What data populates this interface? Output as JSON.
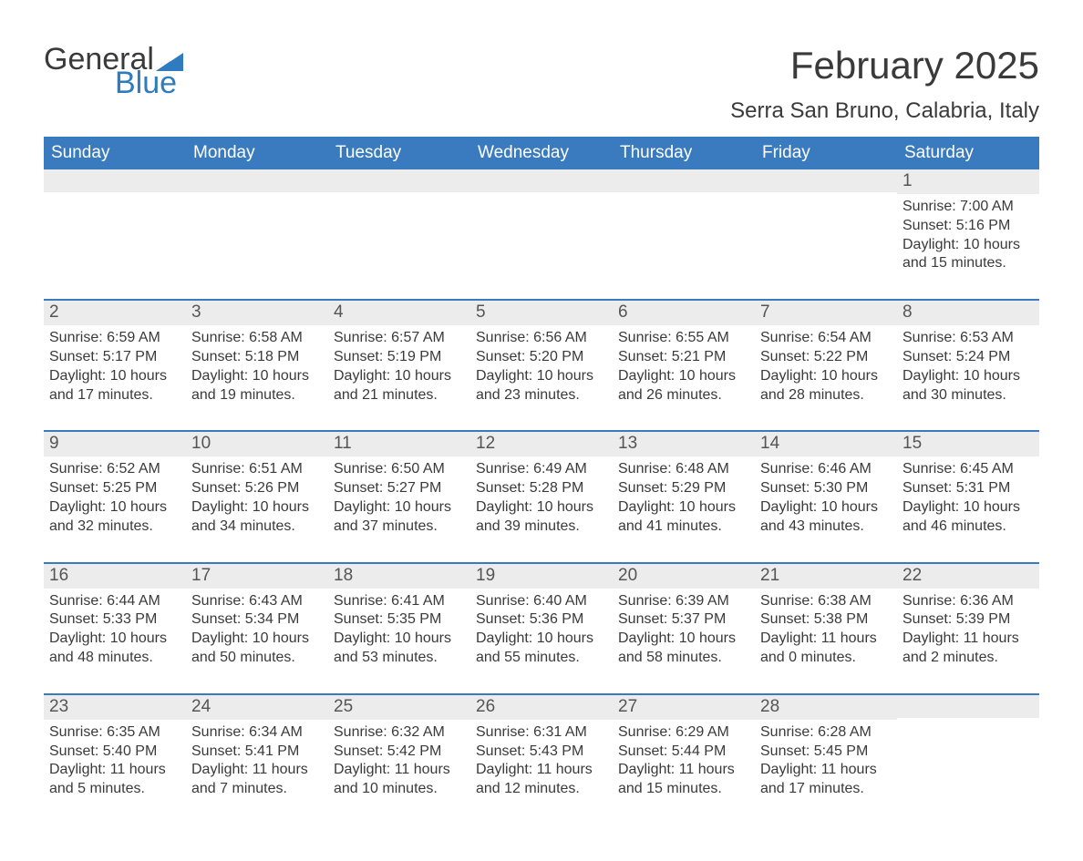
{
  "logo": {
    "text1": "General",
    "text2": "Blue",
    "tri_color": "#2f7bbf"
  },
  "header": {
    "month_title": "February 2025",
    "location": "Serra San Bruno, Calabria, Italy"
  },
  "colors": {
    "header_bg": "#3a7bbf",
    "header_text": "#ffffff",
    "daynum_bg": "#ececec",
    "border": "#3a7bbf",
    "text": "#3a3a3a"
  },
  "day_labels": [
    "Sunday",
    "Monday",
    "Tuesday",
    "Wednesday",
    "Thursday",
    "Friday",
    "Saturday"
  ],
  "weeks": [
    [
      {
        "n": "",
        "sr": "",
        "ss": "",
        "dl1": "",
        "dl2": ""
      },
      {
        "n": "",
        "sr": "",
        "ss": "",
        "dl1": "",
        "dl2": ""
      },
      {
        "n": "",
        "sr": "",
        "ss": "",
        "dl1": "",
        "dl2": ""
      },
      {
        "n": "",
        "sr": "",
        "ss": "",
        "dl1": "",
        "dl2": ""
      },
      {
        "n": "",
        "sr": "",
        "ss": "",
        "dl1": "",
        "dl2": ""
      },
      {
        "n": "",
        "sr": "",
        "ss": "",
        "dl1": "",
        "dl2": ""
      },
      {
        "n": "1",
        "sr": "Sunrise: 7:00 AM",
        "ss": "Sunset: 5:16 PM",
        "dl1": "Daylight: 10 hours",
        "dl2": "and 15 minutes."
      }
    ],
    [
      {
        "n": "2",
        "sr": "Sunrise: 6:59 AM",
        "ss": "Sunset: 5:17 PM",
        "dl1": "Daylight: 10 hours",
        "dl2": "and 17 minutes."
      },
      {
        "n": "3",
        "sr": "Sunrise: 6:58 AM",
        "ss": "Sunset: 5:18 PM",
        "dl1": "Daylight: 10 hours",
        "dl2": "and 19 minutes."
      },
      {
        "n": "4",
        "sr": "Sunrise: 6:57 AM",
        "ss": "Sunset: 5:19 PM",
        "dl1": "Daylight: 10 hours",
        "dl2": "and 21 minutes."
      },
      {
        "n": "5",
        "sr": "Sunrise: 6:56 AM",
        "ss": "Sunset: 5:20 PM",
        "dl1": "Daylight: 10 hours",
        "dl2": "and 23 minutes."
      },
      {
        "n": "6",
        "sr": "Sunrise: 6:55 AM",
        "ss": "Sunset: 5:21 PM",
        "dl1": "Daylight: 10 hours",
        "dl2": "and 26 minutes."
      },
      {
        "n": "7",
        "sr": "Sunrise: 6:54 AM",
        "ss": "Sunset: 5:22 PM",
        "dl1": "Daylight: 10 hours",
        "dl2": "and 28 minutes."
      },
      {
        "n": "8",
        "sr": "Sunrise: 6:53 AM",
        "ss": "Sunset: 5:24 PM",
        "dl1": "Daylight: 10 hours",
        "dl2": "and 30 minutes."
      }
    ],
    [
      {
        "n": "9",
        "sr": "Sunrise: 6:52 AM",
        "ss": "Sunset: 5:25 PM",
        "dl1": "Daylight: 10 hours",
        "dl2": "and 32 minutes."
      },
      {
        "n": "10",
        "sr": "Sunrise: 6:51 AM",
        "ss": "Sunset: 5:26 PM",
        "dl1": "Daylight: 10 hours",
        "dl2": "and 34 minutes."
      },
      {
        "n": "11",
        "sr": "Sunrise: 6:50 AM",
        "ss": "Sunset: 5:27 PM",
        "dl1": "Daylight: 10 hours",
        "dl2": "and 37 minutes."
      },
      {
        "n": "12",
        "sr": "Sunrise: 6:49 AM",
        "ss": "Sunset: 5:28 PM",
        "dl1": "Daylight: 10 hours",
        "dl2": "and 39 minutes."
      },
      {
        "n": "13",
        "sr": "Sunrise: 6:48 AM",
        "ss": "Sunset: 5:29 PM",
        "dl1": "Daylight: 10 hours",
        "dl2": "and 41 minutes."
      },
      {
        "n": "14",
        "sr": "Sunrise: 6:46 AM",
        "ss": "Sunset: 5:30 PM",
        "dl1": "Daylight: 10 hours",
        "dl2": "and 43 minutes."
      },
      {
        "n": "15",
        "sr": "Sunrise: 6:45 AM",
        "ss": "Sunset: 5:31 PM",
        "dl1": "Daylight: 10 hours",
        "dl2": "and 46 minutes."
      }
    ],
    [
      {
        "n": "16",
        "sr": "Sunrise: 6:44 AM",
        "ss": "Sunset: 5:33 PM",
        "dl1": "Daylight: 10 hours",
        "dl2": "and 48 minutes."
      },
      {
        "n": "17",
        "sr": "Sunrise: 6:43 AM",
        "ss": "Sunset: 5:34 PM",
        "dl1": "Daylight: 10 hours",
        "dl2": "and 50 minutes."
      },
      {
        "n": "18",
        "sr": "Sunrise: 6:41 AM",
        "ss": "Sunset: 5:35 PM",
        "dl1": "Daylight: 10 hours",
        "dl2": "and 53 minutes."
      },
      {
        "n": "19",
        "sr": "Sunrise: 6:40 AM",
        "ss": "Sunset: 5:36 PM",
        "dl1": "Daylight: 10 hours",
        "dl2": "and 55 minutes."
      },
      {
        "n": "20",
        "sr": "Sunrise: 6:39 AM",
        "ss": "Sunset: 5:37 PM",
        "dl1": "Daylight: 10 hours",
        "dl2": "and 58 minutes."
      },
      {
        "n": "21",
        "sr": "Sunrise: 6:38 AM",
        "ss": "Sunset: 5:38 PM",
        "dl1": "Daylight: 11 hours",
        "dl2": "and 0 minutes."
      },
      {
        "n": "22",
        "sr": "Sunrise: 6:36 AM",
        "ss": "Sunset: 5:39 PM",
        "dl1": "Daylight: 11 hours",
        "dl2": "and 2 minutes."
      }
    ],
    [
      {
        "n": "23",
        "sr": "Sunrise: 6:35 AM",
        "ss": "Sunset: 5:40 PM",
        "dl1": "Daylight: 11 hours",
        "dl2": "and 5 minutes."
      },
      {
        "n": "24",
        "sr": "Sunrise: 6:34 AM",
        "ss": "Sunset: 5:41 PM",
        "dl1": "Daylight: 11 hours",
        "dl2": "and 7 minutes."
      },
      {
        "n": "25",
        "sr": "Sunrise: 6:32 AM",
        "ss": "Sunset: 5:42 PM",
        "dl1": "Daylight: 11 hours",
        "dl2": "and 10 minutes."
      },
      {
        "n": "26",
        "sr": "Sunrise: 6:31 AM",
        "ss": "Sunset: 5:43 PM",
        "dl1": "Daylight: 11 hours",
        "dl2": "and 12 minutes."
      },
      {
        "n": "27",
        "sr": "Sunrise: 6:29 AM",
        "ss": "Sunset: 5:44 PM",
        "dl1": "Daylight: 11 hours",
        "dl2": "and 15 minutes."
      },
      {
        "n": "28",
        "sr": "Sunrise: 6:28 AM",
        "ss": "Sunset: 5:45 PM",
        "dl1": "Daylight: 11 hours",
        "dl2": "and 17 minutes."
      },
      {
        "n": "",
        "sr": "",
        "ss": "",
        "dl1": "",
        "dl2": ""
      }
    ]
  ]
}
